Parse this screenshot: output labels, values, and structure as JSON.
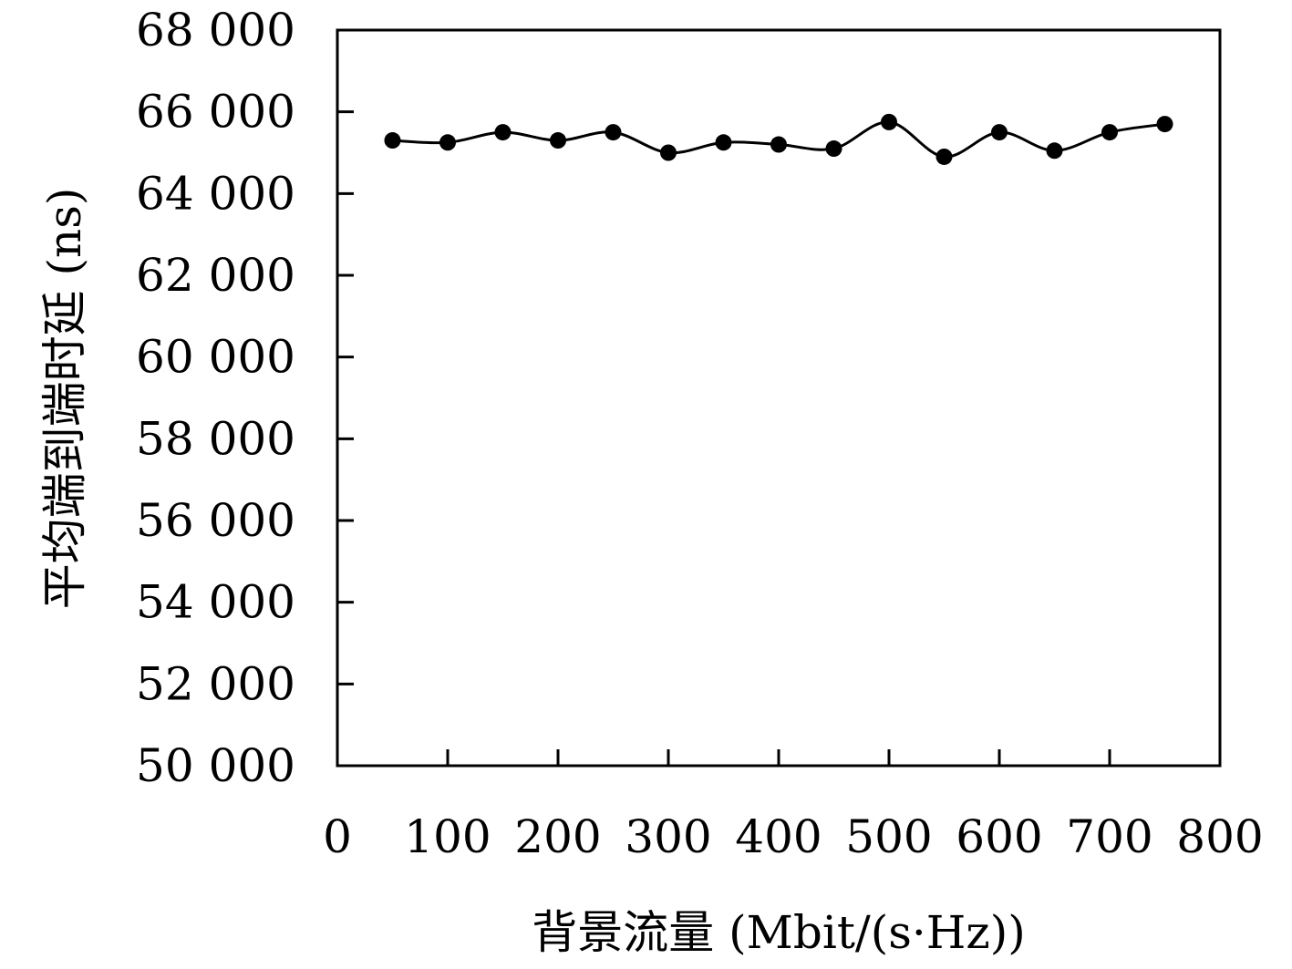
{
  "chart_data": {
    "type": "line",
    "title": "",
    "xlabel": "背景流量 (Mbit/(s·Hz))",
    "ylabel": "平均端到端时延 (ns)",
    "xlim": [
      0,
      800
    ],
    "ylim": [
      50000,
      68000
    ],
    "xticks": [
      0,
      100,
      200,
      300,
      400,
      500,
      600,
      700,
      800
    ],
    "xtick_labels": [
      "0",
      "100",
      "200",
      "300",
      "400",
      "500",
      "600",
      "700",
      "800"
    ],
    "yticks": [
      50000,
      52000,
      54000,
      56000,
      58000,
      60000,
      62000,
      64000,
      66000,
      68000
    ],
    "ytick_labels": [
      "50 000",
      "52 000",
      "54 000",
      "56 000",
      "58 000",
      "60 000",
      "62 000",
      "64 000",
      "66 000",
      "68 000"
    ],
    "grid": false,
    "series": [
      {
        "color": "#000000",
        "marker": "circle",
        "smooth": true,
        "x": [
          50,
          100,
          150,
          200,
          250,
          300,
          350,
          400,
          450,
          500,
          550,
          600,
          650,
          700,
          750
        ],
        "y": [
          65300,
          65250,
          65500,
          65300,
          65500,
          65000,
          65250,
          65200,
          65100,
          65750,
          64900,
          65500,
          65050,
          65500,
          65700
        ]
      }
    ]
  }
}
